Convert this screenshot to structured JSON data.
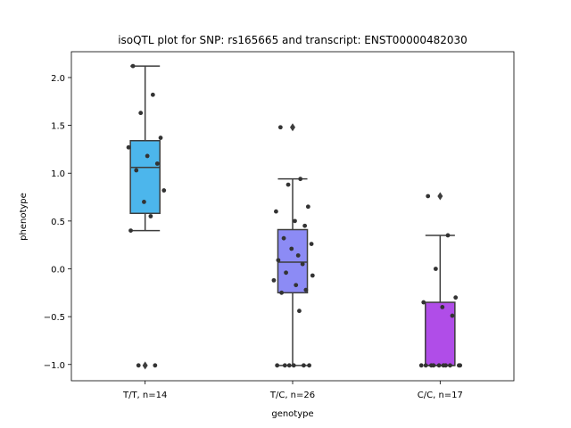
{
  "chart_data": {
    "type": "box",
    "title": "isoQTL plot for SNP: rs165665 and transcript: ENST00000482030",
    "xlabel": "genotype",
    "ylabel": "phenotype",
    "ylim": [
      -1.17,
      2.27
    ],
    "yticks": [
      -1.0,
      -0.5,
      0.0,
      0.5,
      1.0,
      1.5,
      2.0
    ],
    "ytick_labels": [
      "−1.0",
      "−0.5",
      "0.0",
      "0.5",
      "1.0",
      "1.5",
      "2.0"
    ],
    "grid": false,
    "categories": [
      "T/T, n=14",
      "T/C, n=26",
      "C/C, n=17"
    ],
    "boxes": [
      {
        "category": "T/T, n=14",
        "color": "#4cb6ec",
        "q1": 0.58,
        "median": 1.06,
        "q3": 1.34,
        "whisker_low": 0.4,
        "whisker_high": 2.12,
        "outliers": [
          -1.01
        ],
        "points": [
          2.12,
          1.82,
          1.63,
          1.37,
          1.27,
          1.18,
          1.1,
          1.03,
          0.82,
          0.7,
          0.55,
          0.4,
          -1.01,
          -1.01
        ]
      },
      {
        "category": "T/C, n=26",
        "color": "#8c8bf5",
        "q1": -0.25,
        "median": 0.07,
        "q3": 0.41,
        "whisker_low": -1.01,
        "whisker_high": 0.94,
        "outliers": [
          1.48
        ],
        "points": [
          1.48,
          0.94,
          0.88,
          0.65,
          0.6,
          0.5,
          0.45,
          0.32,
          0.26,
          0.21,
          0.14,
          0.09,
          0.05,
          -0.04,
          -0.07,
          -0.12,
          -0.17,
          -0.22,
          -0.25,
          -0.44,
          -1.01,
          -1.01,
          -1.01,
          -1.01,
          -1.01,
          -1.01
        ]
      },
      {
        "category": "C/C, n=17",
        "color": "#b04de8",
        "q1": -1.01,
        "median": -1.01,
        "q3": -0.35,
        "whisker_low": -1.01,
        "whisker_high": 0.35,
        "outliers": [
          0.76
        ],
        "points": [
          0.76,
          0.35,
          0.0,
          -0.3,
          -0.35,
          -0.4,
          -0.49,
          -1.01,
          -1.01,
          -1.01,
          -1.01,
          -1.01,
          -1.01,
          -1.01,
          -1.01,
          -1.01,
          -1.01
        ]
      }
    ]
  }
}
